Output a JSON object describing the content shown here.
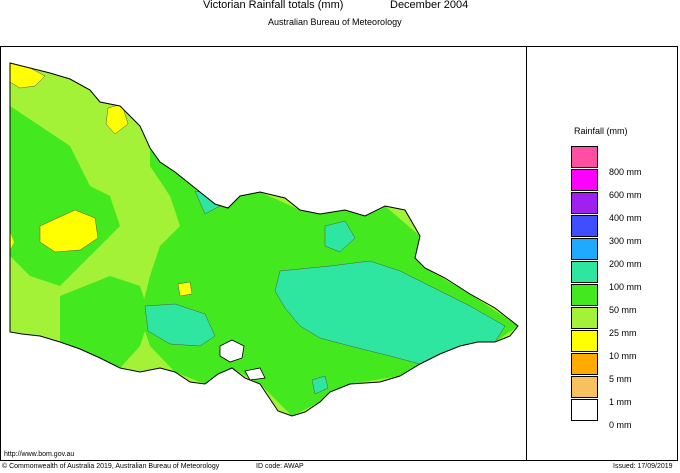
{
  "header": {
    "title": "Victorian Rainfall totals (mm)",
    "period": "December 2004",
    "subtitle": "Australian Bureau of Meteorology"
  },
  "legend": {
    "title": "Rainfall (mm)",
    "items": [
      {
        "label": "800 mm",
        "color": "#ff4fa3"
      },
      {
        "label": "600 mm",
        "color": "#ff00ff"
      },
      {
        "label": "400 mm",
        "color": "#a020f0"
      },
      {
        "label": "300 mm",
        "color": "#3f4fff"
      },
      {
        "label": "200 mm",
        "color": "#1fa9ff"
      },
      {
        "label": "100 mm",
        "color": "#2ee6a0"
      },
      {
        "label": "50 mm",
        "color": "#44e81e"
      },
      {
        "label": "25 mm",
        "color": "#a3f238"
      },
      {
        "label": "10 mm",
        "color": "#ffff00"
      },
      {
        "label": "5 mm",
        "color": "#ffaa00"
      },
      {
        "label": "1 mm",
        "color": "#f7c160"
      },
      {
        "label": "0 mm",
        "color": "#ffffff"
      }
    ]
  },
  "map": {
    "region": "Victoria",
    "dominant_class": "50 mm",
    "colors": {
      "yellow": "#ffff00",
      "lightgreen": "#a3f238",
      "green": "#44e81e",
      "teal": "#2ee6a0"
    }
  },
  "footer": {
    "url": "http://www.bom.gov.au",
    "copyright": "© Commonwealth of Australia 2019, Australian Bureau of Meteorology",
    "id_code": "ID code: AWAP",
    "issued": "Issued: 17/09/2019"
  }
}
